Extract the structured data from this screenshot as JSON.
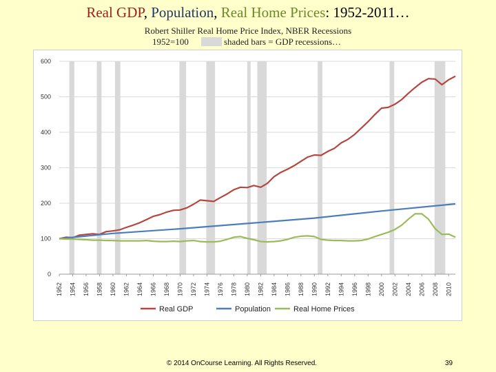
{
  "slide": {
    "title_parts": [
      {
        "text": "Real GDP",
        "color": "#a02020"
      },
      {
        "text": ", ",
        "color": "#000000"
      },
      {
        "text": "Population",
        "color": "#1f3864"
      },
      {
        "text": ", ",
        "color": "#000000"
      },
      {
        "text": "Real Home Prices",
        "color": "#6a8a2a"
      },
      {
        "text": ": 1952-2011…",
        "color": "#000000"
      }
    ],
    "subtitle": "Robert Shiller Real Home Price Index, NBER Recessions",
    "base_note": "1952=100",
    "recession_note": "shaded bars = GDP recessions…",
    "copyright": "© 2014 OnCourse Learning. All Rights Reserved.",
    "page_number": "39"
  },
  "colors": {
    "gdp": "#b5463f",
    "population": "#4a7ebb",
    "home": "#9bbb59",
    "recession": "#d9d9d9",
    "grid": "#d9d9d9"
  },
  "chart_data": {
    "type": "line",
    "title": "",
    "xlabel": "",
    "ylabel": "",
    "xlim": [
      1952,
      2011
    ],
    "ylim": [
      0,
      600
    ],
    "yticks": [
      0,
      100,
      200,
      300,
      400,
      500,
      600
    ],
    "xticks": [
      "1952",
      "1954",
      "1956",
      "1958",
      "1960",
      "1962",
      "1964",
      "1966",
      "1968",
      "1970",
      "1972",
      "1974",
      "1976",
      "1978",
      "1980",
      "1982",
      "1984",
      "1986",
      "1988",
      "1990",
      "1992",
      "1994",
      "1996",
      "1998",
      "2000",
      "2002",
      "2004",
      "2006",
      "2008",
      "2010"
    ],
    "recessions": [
      [
        1953.5,
        1954.25
      ],
      [
        1957.6,
        1958.3
      ],
      [
        1960.3,
        1961.1
      ],
      [
        1969.9,
        1970.9
      ],
      [
        1973.9,
        1975.2
      ],
      [
        1980.0,
        1980.5
      ],
      [
        1981.5,
        1982.9
      ],
      [
        1990.5,
        1991.2
      ],
      [
        2001.2,
        2001.9
      ],
      [
        2007.9,
        2009.5
      ]
    ],
    "series": [
      {
        "name": "Real GDP",
        "color_key": "gdp",
        "points": [
          [
            1952,
            100
          ],
          [
            1953,
            104
          ],
          [
            1954,
            103
          ],
          [
            1955,
            110
          ],
          [
            1956,
            112
          ],
          [
            1957,
            114
          ],
          [
            1958,
            112
          ],
          [
            1959,
            120
          ],
          [
            1960,
            122
          ],
          [
            1961,
            125
          ],
          [
            1962,
            132
          ],
          [
            1963,
            138
          ],
          [
            1964,
            145
          ],
          [
            1965,
            154
          ],
          [
            1966,
            163
          ],
          [
            1967,
            168
          ],
          [
            1968,
            175
          ],
          [
            1969,
            180
          ],
          [
            1970,
            181
          ],
          [
            1971,
            187
          ],
          [
            1972,
            197
          ],
          [
            1973,
            209
          ],
          [
            1974,
            207
          ],
          [
            1975,
            205
          ],
          [
            1976,
            216
          ],
          [
            1977,
            226
          ],
          [
            1978,
            238
          ],
          [
            1979,
            245
          ],
          [
            1980,
            244
          ],
          [
            1981,
            250
          ],
          [
            1982,
            245
          ],
          [
            1983,
            256
          ],
          [
            1984,
            275
          ],
          [
            1985,
            287
          ],
          [
            1986,
            296
          ],
          [
            1987,
            306
          ],
          [
            1988,
            318
          ],
          [
            1989,
            330
          ],
          [
            1990,
            336
          ],
          [
            1991,
            335
          ],
          [
            1992,
            346
          ],
          [
            1993,
            355
          ],
          [
            1994,
            370
          ],
          [
            1995,
            380
          ],
          [
            1996,
            394
          ],
          [
            1997,
            412
          ],
          [
            1998,
            430
          ],
          [
            1999,
            450
          ],
          [
            2000,
            468
          ],
          [
            2001,
            470
          ],
          [
            2002,
            479
          ],
          [
            2003,
            492
          ],
          [
            2004,
            510
          ],
          [
            2005,
            526
          ],
          [
            2006,
            541
          ],
          [
            2007,
            551
          ],
          [
            2008,
            550
          ],
          [
            2009,
            534
          ],
          [
            2010,
            548
          ],
          [
            2011,
            558
          ]
        ]
      },
      {
        "name": "Population",
        "color_key": "population",
        "points": [
          [
            1952,
            100
          ],
          [
            1960,
            115
          ],
          [
            1970,
            128
          ],
          [
            1980,
            143
          ],
          [
            1990,
            158
          ],
          [
            2000,
            178
          ],
          [
            2011,
            198
          ]
        ]
      },
      {
        "name": "Real Home Prices",
        "color_key": "home",
        "points": [
          [
            1952,
            100
          ],
          [
            1953,
            99
          ],
          [
            1954,
            99
          ],
          [
            1955,
            98
          ],
          [
            1956,
            97
          ],
          [
            1957,
            96
          ],
          [
            1958,
            96
          ],
          [
            1959,
            95
          ],
          [
            1960,
            95
          ],
          [
            1961,
            94
          ],
          [
            1962,
            94
          ],
          [
            1963,
            94
          ],
          [
            1964,
            94
          ],
          [
            1965,
            95
          ],
          [
            1966,
            93
          ],
          [
            1967,
            92
          ],
          [
            1968,
            92
          ],
          [
            1969,
            93
          ],
          [
            1970,
            92
          ],
          [
            1971,
            94
          ],
          [
            1972,
            95
          ],
          [
            1973,
            92
          ],
          [
            1974,
            91
          ],
          [
            1975,
            91
          ],
          [
            1976,
            93
          ],
          [
            1977,
            98
          ],
          [
            1978,
            104
          ],
          [
            1979,
            106
          ],
          [
            1980,
            101
          ],
          [
            1981,
            97
          ],
          [
            1982,
            92
          ],
          [
            1983,
            91
          ],
          [
            1984,
            92
          ],
          [
            1985,
            94
          ],
          [
            1986,
            98
          ],
          [
            1987,
            104
          ],
          [
            1988,
            107
          ],
          [
            1989,
            108
          ],
          [
            1990,
            106
          ],
          [
            1991,
            98
          ],
          [
            1992,
            96
          ],
          [
            1993,
            95
          ],
          [
            1994,
            95
          ],
          [
            1995,
            94
          ],
          [
            1996,
            94
          ],
          [
            1997,
            95
          ],
          [
            1998,
            99
          ],
          [
            1999,
            106
          ],
          [
            2000,
            112
          ],
          [
            2001,
            118
          ],
          [
            2002,
            126
          ],
          [
            2003,
            138
          ],
          [
            2004,
            155
          ],
          [
            2005,
            170
          ],
          [
            2006,
            170
          ],
          [
            2007,
            155
          ],
          [
            2008,
            128
          ],
          [
            2009,
            112
          ],
          [
            2010,
            113
          ],
          [
            2011,
            104
          ]
        ]
      }
    ],
    "legend": {
      "position": "bottom",
      "entries": [
        "Real GDP",
        "Population",
        "Real Home Prices"
      ]
    }
  }
}
